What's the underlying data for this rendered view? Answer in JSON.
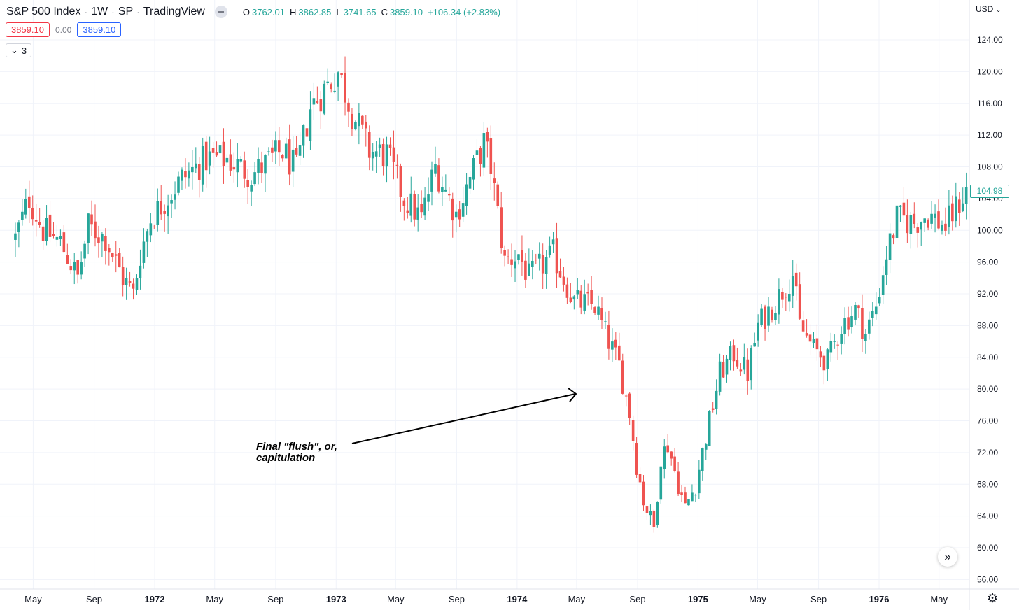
{
  "header": {
    "title": "S&P 500 Index",
    "interval": "1W",
    "exchange": "SP",
    "source": "TradingView",
    "ohlc": {
      "o_label": "O",
      "o": "3762.01",
      "h_label": "H",
      "h": "3862.85",
      "l_label": "L",
      "l": "3741.65",
      "c_label": "C",
      "c": "3859.10",
      "change": "+106.34 (+2.83%)"
    },
    "bid": "3859.10",
    "spread": "0.00",
    "ask": "3859.10",
    "indicators_count": "3"
  },
  "currency": "USD",
  "last_price": "104.98",
  "annotation": {
    "line1": "Final \"flush\", or,",
    "line2": "capitulation"
  },
  "colors": {
    "up": "#26a69a",
    "down": "#ef5350",
    "grid": "#f0f3fa"
  },
  "icons": {
    "visibility": "eye-icon",
    "collapse": "chevron-down-icon",
    "scroll_right": "double-chevron-right-icon",
    "settings": "gear-icon"
  },
  "chart_data": {
    "type": "candlestick",
    "title": "S&P 500 Index",
    "interval": "weekly",
    "y_ticks": [
      "56.00",
      "60.00",
      "64.00",
      "68.00",
      "72.00",
      "76.00",
      "80.00",
      "84.00",
      "88.00",
      "92.00",
      "96.00",
      "100.00",
      "104.00",
      "108.00",
      "112.00",
      "116.00",
      "120.00",
      "124.00"
    ],
    "x_ticks": [
      {
        "label": "May",
        "bold": false
      },
      {
        "label": "Sep",
        "bold": false
      },
      {
        "label": "1972",
        "bold": true
      },
      {
        "label": "May",
        "bold": false
      },
      {
        "label": "Sep",
        "bold": false
      },
      {
        "label": "1973",
        "bold": true
      },
      {
        "label": "May",
        "bold": false
      },
      {
        "label": "Sep",
        "bold": false
      },
      {
        "label": "1974",
        "bold": true
      },
      {
        "label": "May",
        "bold": false
      },
      {
        "label": "Sep",
        "bold": false
      },
      {
        "label": "1975",
        "bold": true
      },
      {
        "label": "May",
        "bold": false
      },
      {
        "label": "Sep",
        "bold": false
      },
      {
        "label": "1976",
        "bold": true
      },
      {
        "label": "May",
        "bold": false
      }
    ],
    "ylim": [
      54,
      126
    ],
    "close_path": [
      [
        "1971-03-26",
        99.0
      ],
      [
        "1971-04-23",
        104.0
      ],
      [
        "1971-05-21",
        100.0
      ],
      [
        "1971-06-25",
        98.5
      ],
      [
        "1971-07-30",
        94.0
      ],
      [
        "1971-08-20",
        100.5
      ],
      [
        "1971-09-24",
        99.0
      ],
      [
        "1971-10-29",
        94.0
      ],
      [
        "1971-11-19",
        92.0
      ],
      [
        "1971-12-03",
        97.0
      ],
      [
        "1971-12-24",
        101.5
      ],
      [
        "1972-02-25",
        106.5
      ],
      [
        "1972-04-14",
        109.0
      ],
      [
        "1972-05-26",
        109.0
      ],
      [
        "1972-07-14",
        107.0
      ],
      [
        "1972-09-15",
        110.0
      ],
      [
        "1972-10-13",
        107.5
      ],
      [
        "1972-11-10",
        115.5
      ],
      [
        "1973-01-05",
        120.0
      ],
      [
        "1973-02-02",
        115.0
      ],
      [
        "1973-02-16",
        113.0
      ],
      [
        "1973-03-09",
        110.0
      ],
      [
        "1973-04-13",
        109.5
      ],
      [
        "1973-05-18",
        104.0
      ],
      [
        "1973-06-22",
        101.5
      ],
      [
        "1973-07-20",
        108.0
      ],
      [
        "1973-08-31",
        102.0
      ],
      [
        "1973-10-26",
        111.0
      ],
      [
        "1973-11-09",
        108.0
      ],
      [
        "1973-12-07",
        96.0
      ],
      [
        "1974-01-04",
        97.0
      ],
      [
        "1974-01-25",
        94.0
      ],
      [
        "1974-03-15",
        97.0
      ],
      [
        "1974-04-26",
        91.0
      ],
      [
        "1974-06-07",
        90.5
      ],
      [
        "1974-06-28",
        87.0
      ],
      [
        "1974-07-26",
        83.0
      ],
      [
        "1974-08-16",
        77.0
      ],
      [
        "1974-08-30",
        70.5
      ],
      [
        "1974-09-13",
        66.0
      ],
      [
        "1974-10-04",
        62.5
      ],
      [
        "1974-10-18",
        71.5
      ],
      [
        "1974-11-01",
        73.0
      ],
      [
        "1974-11-22",
        68.0
      ],
      [
        "1974-12-06",
        65.0
      ],
      [
        "1974-12-27",
        68.0
      ],
      [
        "1975-01-24",
        76.0
      ],
      [
        "1975-02-14",
        82.0
      ],
      [
        "1975-03-14",
        84.5
      ],
      [
        "1975-04-11",
        82.0
      ],
      [
        "1975-05-02",
        88.0
      ],
      [
        "1975-06-06",
        91.0
      ],
      [
        "1975-07-11",
        94.5
      ],
      [
        "1975-07-25",
        88.0
      ],
      [
        "1975-08-22",
        85.0
      ],
      [
        "1975-09-19",
        83.5
      ],
      [
        "1975-10-17",
        88.0
      ],
      [
        "1975-11-14",
        90.0
      ],
      [
        "1975-12-05",
        87.0
      ],
      [
        "1975-12-26",
        90.5
      ],
      [
        "1976-01-16",
        97.0
      ],
      [
        "1976-02-06",
        101.5
      ],
      [
        "1976-03-12",
        101.0
      ],
      [
        "1976-04-09",
        102.0
      ],
      [
        "1976-05-14",
        100.5
      ],
      [
        "1976-06-25",
        105.0
      ]
    ]
  }
}
